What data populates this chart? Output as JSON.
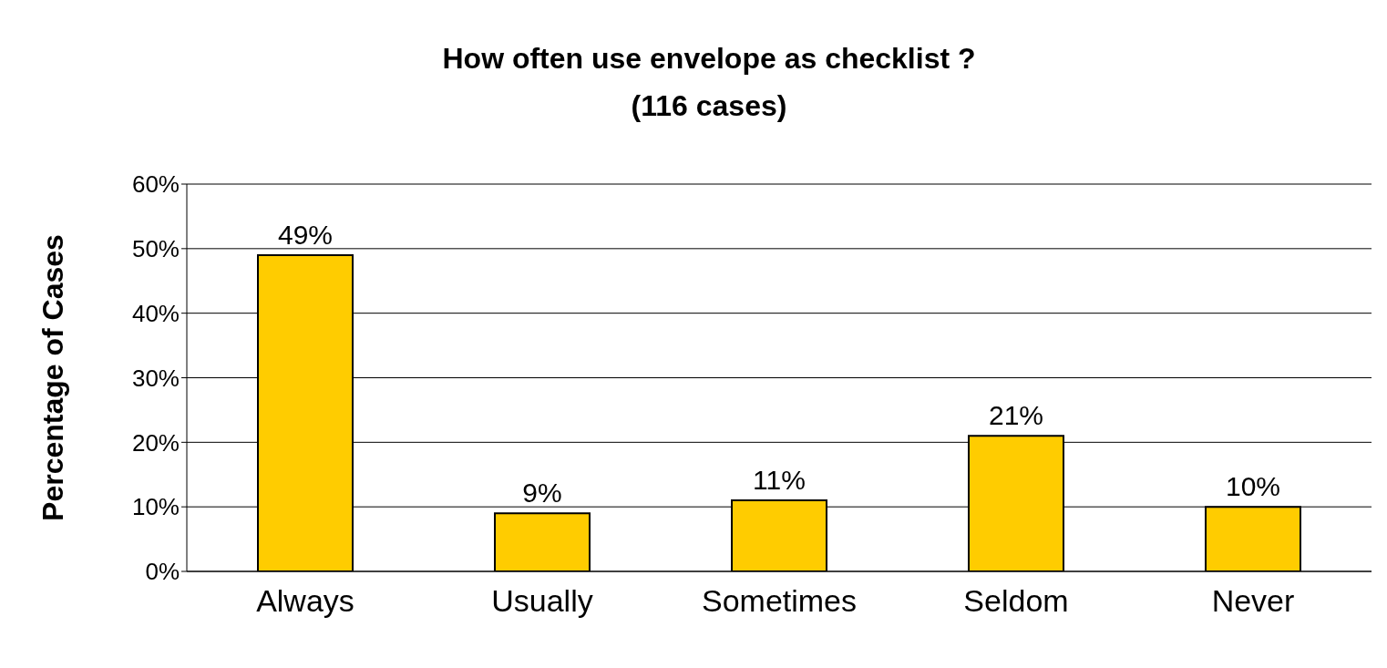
{
  "chart_data": {
    "type": "bar",
    "title": "How often use envelope as checklist ?",
    "subtitle": "(116 cases)",
    "ylabel": "Percentage of Cases",
    "categories": [
      "Always",
      "Usually",
      "Sometimes",
      "Seldom",
      "Never"
    ],
    "values": [
      49,
      9,
      11,
      21,
      10
    ],
    "color": "#ffcc00",
    "value_labels": [
      "49%",
      "9%",
      "11%",
      "21%",
      "10%"
    ],
    "ylim": [
      0,
      60
    ],
    "yticks": [
      {
        "value": 0,
        "label": "0%"
      },
      {
        "value": 10,
        "label": "10%"
      },
      {
        "value": 20,
        "label": "20%"
      },
      {
        "value": 30,
        "label": "30%"
      },
      {
        "value": 40,
        "label": "40%"
      },
      {
        "value": 50,
        "label": "50%"
      },
      {
        "value": 60,
        "label": "60%"
      }
    ],
    "grid": "y",
    "legend": false
  }
}
